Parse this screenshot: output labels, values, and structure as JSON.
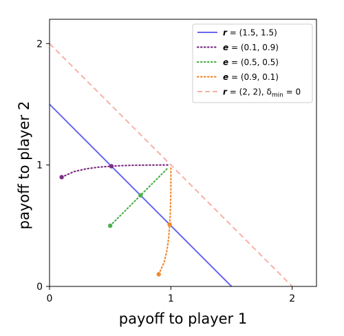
{
  "chart_data": {
    "type": "line",
    "xlabel": "payoff to player 1",
    "ylabel": "payoff to player 2",
    "xlim": [
      0,
      2.2
    ],
    "ylim": [
      0,
      2.2
    ],
    "xticks": [
      "0",
      "1",
      "2"
    ],
    "yticks": [
      "0",
      "1",
      "2"
    ],
    "grid": false,
    "legend_position": "top-right",
    "series": [
      {
        "key": "r15",
        "name_math": {
          "bold": "r",
          "rest": " = (1.5, 1.5)"
        },
        "kind": "solid-line",
        "color": "#6666f2",
        "x": [
          0,
          1.5
        ],
        "y": [
          1.5,
          0
        ]
      },
      {
        "key": "e19",
        "name_math": {
          "bold": "e",
          "rest": " = (0.1, 0.9)"
        },
        "kind": "dotted-path",
        "color": "#7b2d83",
        "x": [
          0.1,
          0.2,
          0.3,
          0.4,
          0.51,
          0.6,
          0.7,
          0.8,
          0.9,
          0.98
        ],
        "y": [
          0.9,
          0.945,
          0.968,
          0.982,
          0.99,
          0.995,
          0.998,
          0.999,
          1.0,
          1.0
        ],
        "markers": [
          {
            "x": 0.1,
            "y": 0.9
          },
          {
            "x": 0.51,
            "y": 0.99
          }
        ]
      },
      {
        "key": "e55",
        "name_math": {
          "bold": "e",
          "rest": " = (0.5, 0.5)"
        },
        "kind": "dotted-path",
        "color": "#4daf4a",
        "x": [
          0.5,
          0.75,
          0.98
        ],
        "y": [
          0.5,
          0.75,
          0.98
        ],
        "markers": [
          {
            "x": 0.5,
            "y": 0.5
          },
          {
            "x": 0.75,
            "y": 0.75
          }
        ]
      },
      {
        "key": "e91",
        "name_math": {
          "bold": "e",
          "rest": " = (0.9, 0.1)"
        },
        "kind": "dotted-path",
        "color": "#f08a2c",
        "x": [
          0.9,
          0.945,
          0.968,
          0.982,
          0.99,
          0.995,
          0.998,
          1.0,
          1.0,
          1.0
        ],
        "y": [
          0.1,
          0.2,
          0.3,
          0.4,
          0.51,
          0.6,
          0.7,
          0.8,
          0.9,
          0.98
        ],
        "markers": [
          {
            "x": 0.9,
            "y": 0.1
          },
          {
            "x": 0.99,
            "y": 0.51
          }
        ]
      },
      {
        "key": "r2",
        "name_math": {
          "bold": "r",
          "rest": " = (2, 2), δ",
          "sub": "min",
          "tail": " = 0"
        },
        "kind": "dashed-line",
        "color": "#f7b0a4",
        "x": [
          0,
          2
        ],
        "y": [
          2,
          0
        ]
      }
    ]
  }
}
